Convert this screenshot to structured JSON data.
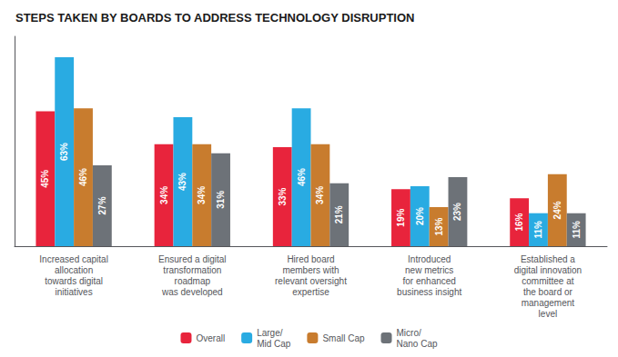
{
  "chart_data": {
    "type": "bar",
    "title": "STEPS TAKEN BY BOARDS TO ADDRESS TECHNOLOGY DISRUPTION",
    "categories": [
      "Increased capital\nallocation\ntowards digital\ninitiatives",
      "Ensured a digital\ntransformation\nroadmap\nwas developed",
      "Hired board\nmembers with\nrelevant oversight\nexpertise",
      "Introduced\nnew metrics\nfor enhanced\nbusiness insight",
      "Established a\ndigital innovation\ncommittee at\nthe board or\nmanagement\nlevel"
    ],
    "series": [
      {
        "name": "Overall",
        "color": "#e8243c",
        "values": [
          45,
          34,
          33,
          19,
          16
        ],
        "value_labels": [
          "45%",
          "34%",
          "33%",
          "19%",
          "16%"
        ]
      },
      {
        "name": "Large/\nMid Cap",
        "color": "#29abe2",
        "values": [
          63,
          43,
          46,
          20,
          11
        ],
        "value_labels": [
          "63%",
          "43%",
          "46%",
          "20%",
          "11%"
        ]
      },
      {
        "name": "Small Cap",
        "color": "#c87c2e",
        "values": [
          46,
          34,
          34,
          13,
          24
        ],
        "value_labels": [
          "46%",
          "34%",
          "34%",
          "13%",
          "24%"
        ]
      },
      {
        "name": "Micro/\nNano Cap",
        "color": "#6d7278",
        "values": [
          27,
          31,
          21,
          23,
          11
        ],
        "value_labels": [
          "27%",
          "31%",
          "21%",
          "23%",
          "11%"
        ]
      }
    ],
    "ylim": [
      0,
      70
    ],
    "grid": false,
    "legend": "bottom",
    "data_labels": true,
    "tick_labels": "x"
  }
}
